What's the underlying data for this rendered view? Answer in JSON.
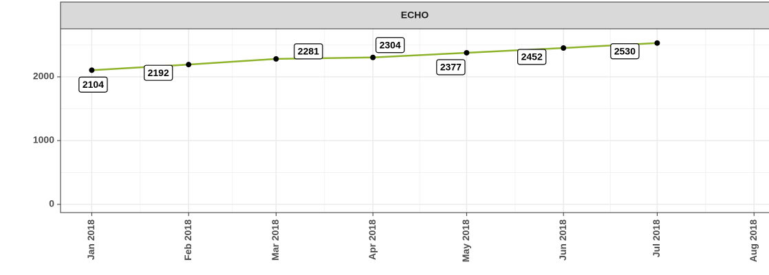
{
  "chart_data": {
    "type": "line",
    "title": "ECHO",
    "x": [
      "2018-01",
      "2018-02",
      "2018-03",
      "2018-04",
      "2018-05",
      "2018-06",
      "2018-07"
    ],
    "series": [
      {
        "name": "ECHO",
        "color": "#8db32a",
        "values": [
          2104,
          2192,
          2281,
          2304,
          2377,
          2452,
          2530
        ]
      }
    ],
    "xlim": [
      "2017-12-22",
      "2018-08-08"
    ],
    "xticks": [
      {
        "value": "2018-01",
        "label": "Jan 2018"
      },
      {
        "value": "2018-02",
        "label": "Feb 2018"
      },
      {
        "value": "2018-03",
        "label": "Mar 2018"
      },
      {
        "value": "2018-04",
        "label": "Apr 2018"
      },
      {
        "value": "2018-05",
        "label": "May 2018"
      },
      {
        "value": "2018-06",
        "label": "Jun 2018"
      },
      {
        "value": "2018-07",
        "label": "Jul 2018"
      },
      {
        "value": "2018-08",
        "label": "Aug 2018"
      }
    ],
    "ylim": [
      -129,
      2753
    ],
    "yticks": [
      0,
      1000,
      2000
    ],
    "grid": true
  }
}
